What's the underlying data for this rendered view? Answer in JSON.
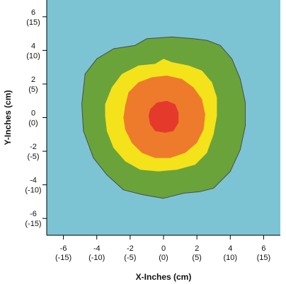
{
  "chart_data": {
    "type": "contour",
    "xlabel": "X-Inches (cm)",
    "ylabel": "Y-Inches (cm)",
    "xlim": [
      -7,
      7
    ],
    "ylim": [
      -7,
      7
    ],
    "grid": false,
    "x_ticks": [
      {
        "value": -6,
        "label": "-6",
        "sublabel": "(-15)"
      },
      {
        "value": -4,
        "label": "-4",
        "sublabel": "(-10)"
      },
      {
        "value": -2,
        "label": "-2",
        "sublabel": "(-5)"
      },
      {
        "value": 0,
        "label": "0",
        "sublabel": "(0)"
      },
      {
        "value": 2,
        "label": "2",
        "sublabel": "(5)"
      },
      {
        "value": 4,
        "label": "4",
        "sublabel": "(10)"
      },
      {
        "value": 6,
        "label": "6",
        "sublabel": "(15)"
      }
    ],
    "y_ticks": [
      {
        "value": 6,
        "label": "6",
        "sublabel": "(15)"
      },
      {
        "value": 4,
        "label": "4",
        "sublabel": "(10)"
      },
      {
        "value": 2,
        "label": "2",
        "sublabel": "(5)"
      },
      {
        "value": 0,
        "label": "0",
        "sublabel": "(0)"
      },
      {
        "value": -2,
        "label": "-2",
        "sublabel": "(-5)"
      },
      {
        "value": -4,
        "label": "-4",
        "sublabel": "(-10)"
      },
      {
        "value": -6,
        "label": "-6",
        "sublabel": "(-15)"
      }
    ],
    "background_color": "#7cc4d4",
    "levels": [
      {
        "color": "#6aa33a",
        "outline": [
          [
            -4.7,
            2.6
          ],
          [
            -4,
            3.5
          ],
          [
            -3,
            4.1
          ],
          [
            -1.7,
            4.3
          ],
          [
            -1,
            4.7
          ],
          [
            0.5,
            4.8
          ],
          [
            1.8,
            4.7
          ],
          [
            2.6,
            4.6
          ],
          [
            3.4,
            4.3
          ],
          [
            4.1,
            3.5
          ],
          [
            4.6,
            2.3
          ],
          [
            4.9,
            0.9
          ],
          [
            4.9,
            -0.5
          ],
          [
            4.6,
            -1.9
          ],
          [
            4,
            -3.2
          ],
          [
            3,
            -4.2
          ],
          [
            2.2,
            -4.4
          ],
          [
            1.2,
            -4.5
          ],
          [
            0,
            -4.8
          ],
          [
            -1.2,
            -4.6
          ],
          [
            -2.4,
            -4.3
          ],
          [
            -3.4,
            -3.4
          ],
          [
            -4.2,
            -2.4
          ],
          [
            -4.8,
            -0.8
          ],
          [
            -4.9,
            0.8
          ]
        ]
      },
      {
        "color": "#f4e21a",
        "outline": [
          [
            -3.5,
            0.8
          ],
          [
            -3.1,
            1.8
          ],
          [
            -2.5,
            2.6
          ],
          [
            -1.5,
            3.1
          ],
          [
            -0.5,
            3.2
          ],
          [
            0,
            3.5
          ],
          [
            0.5,
            3.3
          ],
          [
            1.5,
            3.1
          ],
          [
            2.3,
            2.8
          ],
          [
            2.9,
            2.1
          ],
          [
            3.2,
            1.2
          ],
          [
            3.2,
            0.1
          ],
          [
            3,
            -1
          ],
          [
            2.6,
            -2.1
          ],
          [
            1.9,
            -2.8
          ],
          [
            0.8,
            -3.1
          ],
          [
            -0.3,
            -3.2
          ],
          [
            -1.4,
            -3.1
          ],
          [
            -2.3,
            -2.6
          ],
          [
            -3,
            -1.8
          ],
          [
            -3.4,
            -0.8
          ],
          [
            -3.5,
            0.1
          ]
        ]
      },
      {
        "color": "#ee7b2c",
        "outline": [
          [
            -2.3,
            0.7
          ],
          [
            -2.1,
            1.5
          ],
          [
            -1.5,
            2.1
          ],
          [
            -0.7,
            2.4
          ],
          [
            0.2,
            2.5
          ],
          [
            1.1,
            2.3
          ],
          [
            1.8,
            1.8
          ],
          [
            2.3,
            1.1
          ],
          [
            2.5,
            0.2
          ],
          [
            2.4,
            -0.7
          ],
          [
            2,
            -1.5
          ],
          [
            1.3,
            -2.1
          ],
          [
            0.4,
            -2.4
          ],
          [
            -0.5,
            -2.4
          ],
          [
            -1.3,
            -2.1
          ],
          [
            -1.9,
            -1.5
          ],
          [
            -2.3,
            -0.7
          ],
          [
            -2.4,
            0
          ]
        ]
      },
      {
        "color": "#e53a2b",
        "outline": [
          [
            -0.8,
            0.5
          ],
          [
            -0.4,
            0.9
          ],
          [
            0.2,
            1
          ],
          [
            0.7,
            0.8
          ],
          [
            0.9,
            0.3
          ],
          [
            0.9,
            -0.3
          ],
          [
            0.6,
            -0.8
          ],
          [
            0.1,
            -0.9
          ],
          [
            -0.5,
            -0.8
          ],
          [
            -0.8,
            -0.4
          ],
          [
            -0.9,
            0.1
          ]
        ]
      }
    ]
  }
}
